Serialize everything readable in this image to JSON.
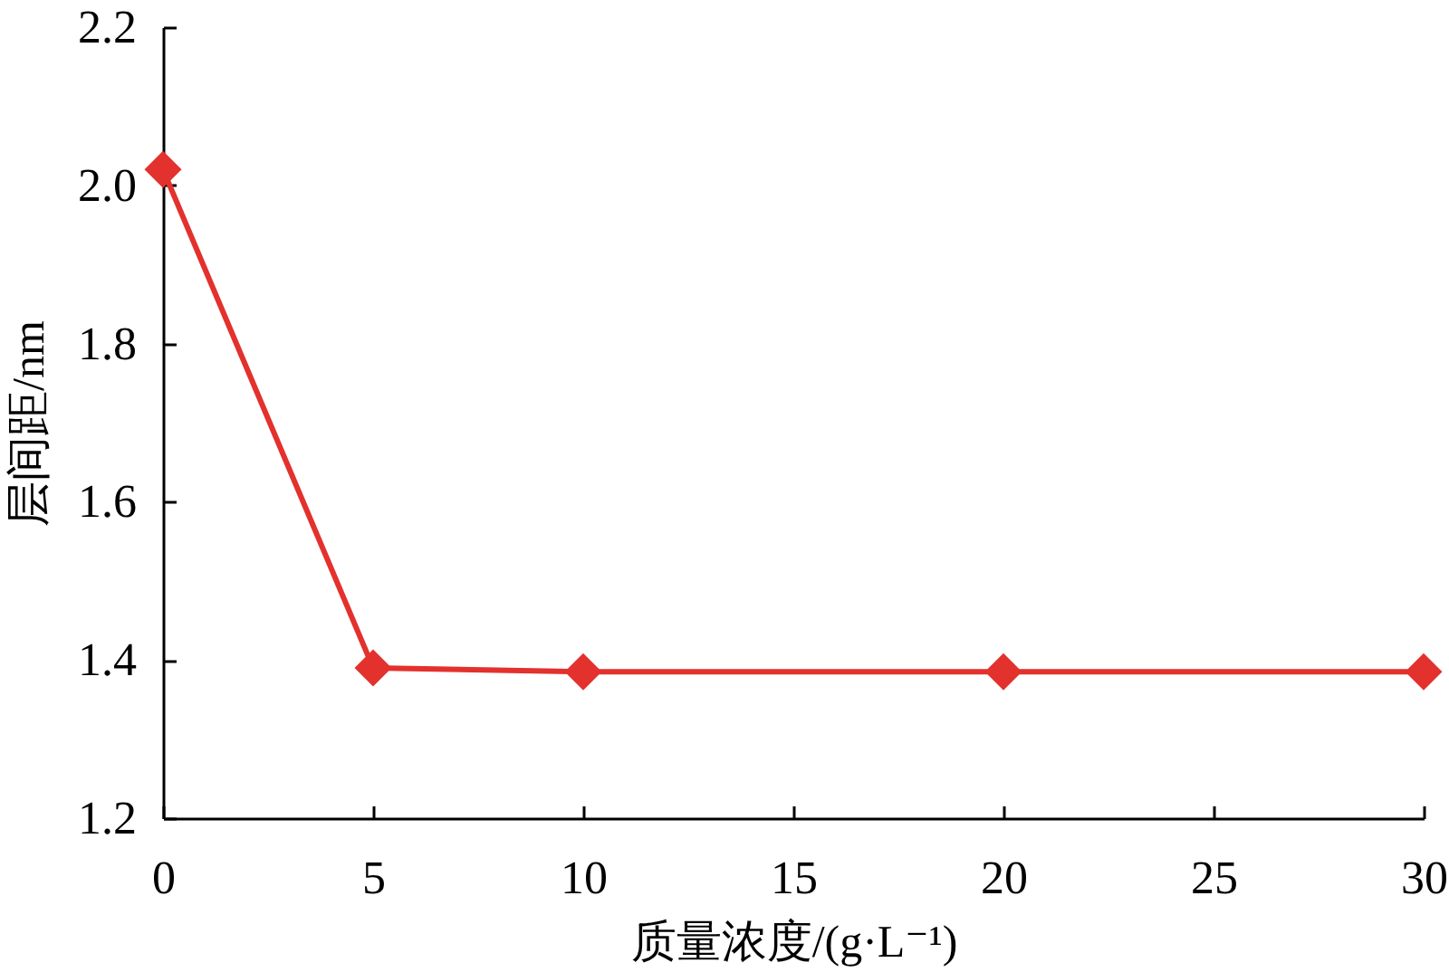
{
  "chart_data": {
    "type": "line",
    "xlabel": "质量浓度/(g·L⁻¹)",
    "ylabel": "层间距/nm",
    "x": [
      0,
      5,
      10,
      20,
      30
    ],
    "series": [
      {
        "color": "#e3312d",
        "values": [
          2.02,
          1.39,
          1.385,
          1.385,
          1.385
        ]
      }
    ],
    "xlim": [
      0,
      30
    ],
    "xticks": [
      0,
      5,
      10,
      15,
      20,
      25,
      30
    ],
    "ylim": [
      1.2,
      2.2
    ],
    "yticks": [
      1.2,
      1.4,
      1.6,
      1.8,
      {
        "value": 2,
        "label": "2.0"
      },
      2.2
    ],
    "marker": "diamond",
    "line_style": "solid"
  }
}
